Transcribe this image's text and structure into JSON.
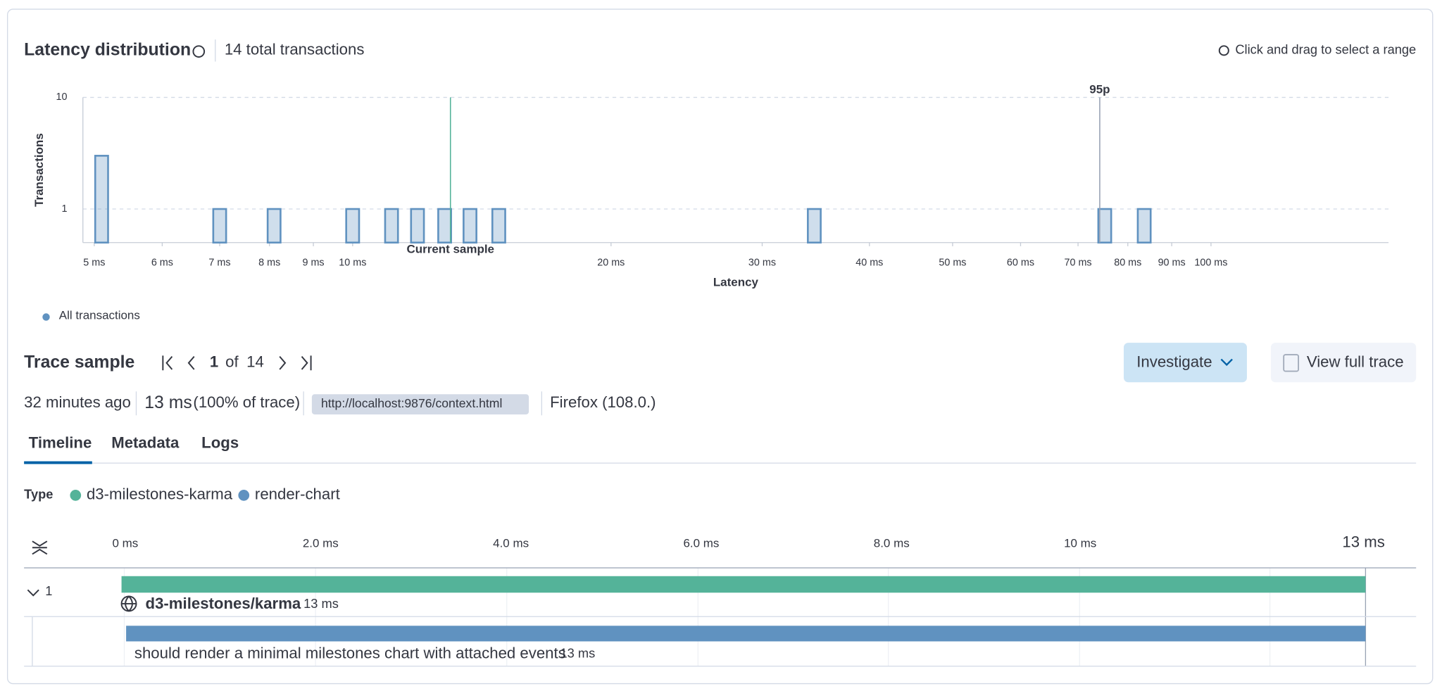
{
  "header": {
    "title": "Latency distribution",
    "total": "14 total transactions",
    "hint": "Click and drag to select a range"
  },
  "chart_data": {
    "type": "bar",
    "x_scale": "log",
    "y_scale": "log",
    "y_label": "Transactions",
    "x_label": "Latency",
    "series": [
      {
        "name": "All transactions",
        "color": "#6092c0",
        "x": [
          5.1,
          7.0,
          8.1,
          10.0,
          11.1,
          11.9,
          12.8,
          13.7,
          14.8,
          34.5,
          75.2,
          83.6
        ],
        "values": [
          3,
          1,
          1,
          1,
          1,
          1,
          1,
          1,
          1,
          1,
          1,
          1
        ]
      }
    ],
    "xlim": [
      4.85,
      161
    ],
    "ylim": [
      0.5,
      10
    ],
    "xticks": [
      {
        "value": 5,
        "label": "5 ms"
      },
      {
        "value": 6,
        "label": "6 ms"
      },
      {
        "value": 7,
        "label": "7 ms"
      },
      {
        "value": 8,
        "label": "8 ms"
      },
      {
        "value": 9,
        "label": "9 ms"
      },
      {
        "value": 10,
        "label": "10 ms"
      },
      {
        "value": 20,
        "label": "20 ms"
      },
      {
        "value": 30,
        "label": "30 ms"
      },
      {
        "value": 40,
        "label": "40 ms"
      },
      {
        "value": 50,
        "label": "50 ms"
      },
      {
        "value": 60,
        "label": "60 ms"
      },
      {
        "value": 70,
        "label": "70 ms"
      },
      {
        "value": 80,
        "label": "80 ms"
      },
      {
        "value": 90,
        "label": "90 ms"
      },
      {
        "value": 100,
        "label": "100 ms"
      }
    ],
    "yticks": [
      1,
      10
    ],
    "grid": true,
    "annotations": [
      {
        "label": "Current sample",
        "x": 13.0,
        "color": "#54b399"
      },
      {
        "label": "95p",
        "x": 74.2,
        "color": "#98a2b3"
      }
    ]
  },
  "trace": {
    "title": "Trace sample",
    "page": "1",
    "of": "of",
    "count": "14",
    "investigate": "Investigate",
    "view": "View full trace",
    "age": "32 minutes ago",
    "duration": "13 ms",
    "pct": "(100% of trace)",
    "url": "http://localhost:9876/context.html",
    "browser": "Firefox (108.0.)"
  },
  "tabs": [
    "Timeline",
    "Metadata",
    "Logs"
  ],
  "legend": {
    "label": "Type",
    "items": [
      {
        "name": "d3-milestones-karma",
        "color": "#54b399"
      },
      {
        "name": "render-chart",
        "color": "#6092c0"
      }
    ]
  },
  "timeline": {
    "ticks": [
      "0 ms",
      "2.0 ms",
      "4.0 ms",
      "6.0 ms",
      "8.0 ms",
      "10 ms"
    ],
    "end": "13 ms",
    "rows": [
      {
        "depth": "1",
        "name": "d3-milestones/karma",
        "duration": "13 ms",
        "color": "#54b399"
      },
      {
        "name": "should render a minimal milestones chart with attached events",
        "duration": "13 ms",
        "color": "#6092c0"
      }
    ]
  }
}
